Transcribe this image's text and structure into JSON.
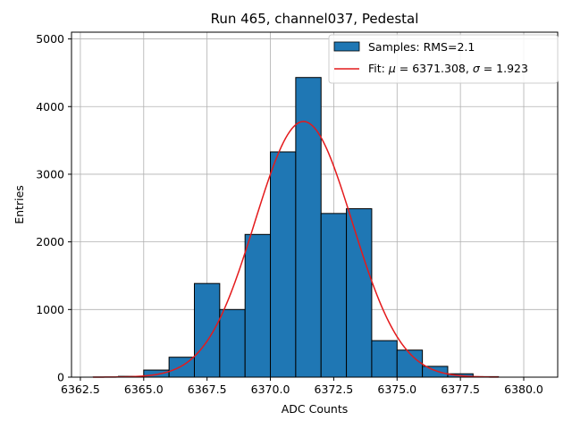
{
  "chart_data": {
    "type": "bar",
    "title": "Run 465, channel037, Pedestal",
    "xlabel": "ADC Counts",
    "ylabel": "Entries",
    "xlim": [
      6362.15,
      6381.34
    ],
    "ylim": [
      0,
      5100
    ],
    "grid": true,
    "legend_position": "top-right",
    "xticks": [
      6362.5,
      6365.0,
      6367.5,
      6370.0,
      6372.5,
      6375.0,
      6377.5,
      6380.0
    ],
    "xtick_labels": [
      "6362.5",
      "6365.0",
      "6367.5",
      "6370.0",
      "6372.5",
      "6375.0",
      "6377.5",
      "6380.0"
    ],
    "yticks": [
      0,
      1000,
      2000,
      3000,
      4000,
      5000
    ],
    "ytick_labels": [
      "0",
      "1000",
      "2000",
      "3000",
      "4000",
      "5000"
    ],
    "histogram": {
      "name": "Samples: RMS=2.1",
      "color": "#1f77b4",
      "edge_color": "#000000",
      "bins": [
        {
          "x0": 6363.0,
          "x1": 6364.0,
          "value": 2
        },
        {
          "x0": 6364.0,
          "x1": 6365.0,
          "value": 12
        },
        {
          "x0": 6365.0,
          "x1": 6366.0,
          "value": 105
        },
        {
          "x0": 6366.0,
          "x1": 6367.0,
          "value": 295
        },
        {
          "x0": 6367.0,
          "x1": 6368.0,
          "value": 1385
        },
        {
          "x0": 6368.0,
          "x1": 6369.0,
          "value": 1000
        },
        {
          "x0": 6369.0,
          "x1": 6370.0,
          "value": 2110
        },
        {
          "x0": 6370.0,
          "x1": 6371.0,
          "value": 3330
        },
        {
          "x0": 6371.0,
          "x1": 6372.0,
          "value": 4430
        },
        {
          "x0": 6372.0,
          "x1": 6373.0,
          "value": 2420
        },
        {
          "x0": 6373.0,
          "x1": 6374.0,
          "value": 2490
        },
        {
          "x0": 6374.0,
          "x1": 6375.0,
          "value": 540
        },
        {
          "x0": 6375.0,
          "x1": 6376.0,
          "value": 400
        },
        {
          "x0": 6376.0,
          "x1": 6377.0,
          "value": 160
        },
        {
          "x0": 6377.0,
          "x1": 6378.0,
          "value": 50
        },
        {
          "x0": 6378.0,
          "x1": 6379.0,
          "value": 8
        }
      ]
    },
    "fit": {
      "name_prefix": "Fit: ",
      "name_mu": "μ",
      "name_mu_value": " = 6371.308, ",
      "name_sigma": "σ",
      "name_sigma_value": " = 1.923",
      "color": "#e41a1c",
      "mu": 6371.308,
      "sigma": 1.923,
      "amplitude": 3780,
      "x_range": [
        6363.0,
        6379.0
      ]
    }
  }
}
